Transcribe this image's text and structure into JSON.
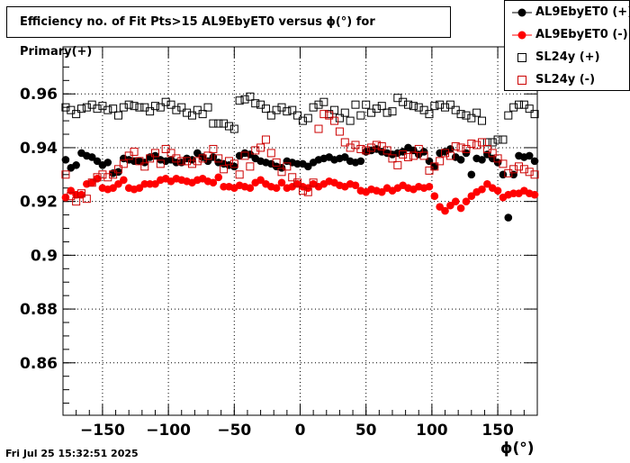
{
  "chart_data": {
    "type": "scatter",
    "title": "Efficiency no. of Fit Pts>15 AL9EbyET0 versus ϕ(°) for Primary(+)",
    "xlabel": "ϕ(°)",
    "ylabel": "",
    "xlim": [
      -180,
      180
    ],
    "ylim": [
      0.8405,
      0.9775
    ],
    "x_ticks": [
      -150,
      -100,
      -50,
      0,
      50,
      100,
      150
    ],
    "x_tick_labels": [
      "−150",
      "−100",
      "−50",
      "0",
      "50",
      "100",
      "150"
    ],
    "y_ticks": [
      0.86,
      0.88,
      0.9,
      0.92,
      0.94,
      0.96
    ],
    "y_tick_labels": [
      "0.86",
      "0.88",
      "0.9",
      "0.92",
      "0.94",
      "0.96"
    ],
    "grid": true,
    "legend_position": "top-right",
    "series": [
      {
        "name": "AL9EbyET0 (+)",
        "marker": "filled-circle",
        "color": "#000000",
        "x": [
          -178,
          -174,
          -170,
          -166,
          -162,
          -158,
          -154,
          -150,
          -146,
          -142,
          -138,
          -134,
          -130,
          -126,
          -122,
          -118,
          -114,
          -110,
          -106,
          -102,
          -98,
          -94,
          -90,
          -86,
          -82,
          -78,
          -74,
          -70,
          -66,
          -62,
          -58,
          -54,
          -50,
          -46,
          -42,
          -38,
          -34,
          -30,
          -26,
          -22,
          -18,
          -14,
          -10,
          -6,
          -2,
          2,
          6,
          10,
          14,
          18,
          22,
          26,
          30,
          34,
          38,
          42,
          46,
          50,
          54,
          58,
          62,
          66,
          70,
          74,
          78,
          82,
          86,
          90,
          94,
          98,
          102,
          106,
          110,
          114,
          118,
          122,
          126,
          130,
          134,
          138,
          142,
          146,
          150,
          154,
          158,
          162,
          166,
          170,
          174,
          178
        ],
        "y": [
          0.9355,
          0.9325,
          0.9335,
          0.938,
          0.937,
          0.9365,
          0.935,
          0.9335,
          0.9345,
          0.9305,
          0.931,
          0.936,
          0.9355,
          0.935,
          0.935,
          0.9345,
          0.9365,
          0.937,
          0.9355,
          0.935,
          0.9355,
          0.9345,
          0.9345,
          0.936,
          0.9355,
          0.938,
          0.9365,
          0.935,
          0.9365,
          0.9345,
          0.934,
          0.9335,
          0.933,
          0.937,
          0.938,
          0.9375,
          0.936,
          0.935,
          0.9345,
          0.934,
          0.933,
          0.9325,
          0.935,
          0.9345,
          0.934,
          0.934,
          0.933,
          0.9345,
          0.9355,
          0.936,
          0.9365,
          0.9355,
          0.936,
          0.9365,
          0.935,
          0.9345,
          0.935,
          0.9385,
          0.939,
          0.9395,
          0.9385,
          0.938,
          0.9375,
          0.938,
          0.9385,
          0.94,
          0.939,
          0.9375,
          0.9385,
          0.935,
          0.933,
          0.938,
          0.9385,
          0.9395,
          0.9365,
          0.9355,
          0.938,
          0.93,
          0.936,
          0.9355,
          0.9375,
          0.936,
          0.9345,
          0.93,
          0.914,
          0.93,
          0.937,
          0.9365,
          0.937,
          0.935
        ]
      },
      {
        "name": "AL9EbyET0 (-)",
        "marker": "filled-circle",
        "color": "#ff0000",
        "x": [
          -178,
          -174,
          -170,
          -166,
          -162,
          -158,
          -154,
          -150,
          -146,
          -142,
          -138,
          -134,
          -130,
          -126,
          -122,
          -118,
          -114,
          -110,
          -106,
          -102,
          -98,
          -94,
          -90,
          -86,
          -82,
          -78,
          -74,
          -70,
          -66,
          -62,
          -58,
          -54,
          -50,
          -46,
          -42,
          -38,
          -34,
          -30,
          -26,
          -22,
          -18,
          -14,
          -10,
          -6,
          -2,
          2,
          6,
          10,
          14,
          18,
          22,
          26,
          30,
          34,
          38,
          42,
          46,
          50,
          54,
          58,
          62,
          66,
          70,
          74,
          78,
          82,
          86,
          90,
          94,
          98,
          102,
          106,
          110,
          114,
          118,
          122,
          126,
          130,
          134,
          138,
          142,
          146,
          150,
          154,
          158,
          162,
          166,
          170,
          174,
          178
        ],
        "y": [
          0.9215,
          0.924,
          0.9225,
          0.9225,
          0.9265,
          0.927,
          0.9285,
          0.925,
          0.9245,
          0.925,
          0.9265,
          0.928,
          0.925,
          0.9245,
          0.925,
          0.9265,
          0.9265,
          0.9265,
          0.928,
          0.9285,
          0.9275,
          0.9285,
          0.928,
          0.9275,
          0.927,
          0.928,
          0.9285,
          0.9275,
          0.927,
          0.929,
          0.9255,
          0.9255,
          0.925,
          0.926,
          0.9255,
          0.925,
          0.927,
          0.928,
          0.9265,
          0.9255,
          0.925,
          0.927,
          0.925,
          0.9255,
          0.9265,
          0.9255,
          0.925,
          0.9265,
          0.9255,
          0.9265,
          0.9275,
          0.927,
          0.926,
          0.9255,
          0.9265,
          0.926,
          0.924,
          0.9235,
          0.9245,
          0.924,
          0.9235,
          0.925,
          0.924,
          0.925,
          0.926,
          0.925,
          0.9245,
          0.9255,
          0.925,
          0.9255,
          0.922,
          0.918,
          0.9165,
          0.9185,
          0.92,
          0.9175,
          0.92,
          0.922,
          0.9235,
          0.9245,
          0.9265,
          0.925,
          0.924,
          0.9215,
          0.9225,
          0.923,
          0.923,
          0.924,
          0.923,
          0.9225
        ]
      },
      {
        "name": "SL24y (+)",
        "marker": "open-square",
        "color": "#000000",
        "x": [
          -178,
          -174,
          -170,
          -166,
          -162,
          -158,
          -154,
          -150,
          -146,
          -142,
          -138,
          -134,
          -130,
          -126,
          -122,
          -118,
          -114,
          -110,
          -106,
          -102,
          -98,
          -94,
          -90,
          -86,
          -82,
          -78,
          -74,
          -70,
          -66,
          -62,
          -58,
          -54,
          -50,
          -46,
          -42,
          -38,
          -34,
          -30,
          -26,
          -22,
          -18,
          -14,
          -10,
          -6,
          -2,
          2,
          6,
          10,
          14,
          18,
          22,
          26,
          30,
          34,
          38,
          42,
          46,
          50,
          54,
          58,
          62,
          66,
          70,
          74,
          78,
          82,
          86,
          90,
          94,
          98,
          102,
          106,
          110,
          114,
          118,
          122,
          126,
          130,
          134,
          138,
          142,
          146,
          150,
          154,
          158,
          162,
          166,
          170,
          174,
          178
        ],
        "y": [
          0.955,
          0.954,
          0.9525,
          0.9545,
          0.955,
          0.956,
          0.9545,
          0.9555,
          0.954,
          0.9545,
          0.952,
          0.955,
          0.956,
          0.9555,
          0.955,
          0.955,
          0.9535,
          0.9555,
          0.955,
          0.957,
          0.956,
          0.954,
          0.955,
          0.953,
          0.952,
          0.954,
          0.9525,
          0.955,
          0.949,
          0.949,
          0.949,
          0.948,
          0.947,
          0.9575,
          0.958,
          0.959,
          0.9565,
          0.956,
          0.9545,
          0.952,
          0.954,
          0.955,
          0.9535,
          0.954,
          0.952,
          0.95,
          0.951,
          0.955,
          0.956,
          0.957,
          0.9525,
          0.954,
          0.951,
          0.953,
          0.95,
          0.956,
          0.952,
          0.956,
          0.953,
          0.9545,
          0.9555,
          0.953,
          0.9535,
          0.9585,
          0.957,
          0.956,
          0.9555,
          0.955,
          0.954,
          0.9525,
          0.9555,
          0.956,
          0.955,
          0.956,
          0.954,
          0.9525,
          0.952,
          0.951,
          0.953,
          0.95,
          0.942,
          0.942,
          0.943,
          0.943,
          0.952,
          0.955,
          0.956,
          0.956,
          0.9545,
          0.9525
        ]
      },
      {
        "name": "SL24y (-)",
        "marker": "open-square",
        "color": "#cc0000",
        "x": [
          -178,
          -174,
          -170,
          -166,
          -162,
          -158,
          -154,
          -150,
          -146,
          -142,
          -138,
          -134,
          -130,
          -126,
          -122,
          -118,
          -114,
          -110,
          -106,
          -102,
          -98,
          -94,
          -90,
          -86,
          -82,
          -78,
          -74,
          -70,
          -66,
          -62,
          -58,
          -54,
          -50,
          -46,
          -42,
          -38,
          -34,
          -30,
          -26,
          -22,
          -18,
          -14,
          -10,
          -6,
          -2,
          2,
          6,
          10,
          14,
          18,
          22,
          26,
          30,
          34,
          38,
          42,
          46,
          50,
          54,
          58,
          62,
          66,
          70,
          74,
          78,
          82,
          86,
          90,
          94,
          98,
          102,
          106,
          110,
          114,
          118,
          122,
          126,
          130,
          134,
          138,
          142,
          146,
          150,
          154,
          158,
          162,
          166,
          170,
          174,
          178
        ],
        "y": [
          0.93,
          0.922,
          0.92,
          0.923,
          0.921,
          0.927,
          0.929,
          0.93,
          0.929,
          0.93,
          0.932,
          0.934,
          0.937,
          0.9385,
          0.935,
          0.933,
          0.936,
          0.938,
          0.934,
          0.9395,
          0.938,
          0.936,
          0.935,
          0.935,
          0.934,
          0.935,
          0.936,
          0.937,
          0.9395,
          0.936,
          0.932,
          0.935,
          0.934,
          0.93,
          0.937,
          0.933,
          0.939,
          0.94,
          0.943,
          0.938,
          0.9345,
          0.931,
          0.933,
          0.929,
          0.927,
          0.924,
          0.9235,
          0.927,
          0.947,
          0.9525,
          0.952,
          0.95,
          0.946,
          0.942,
          0.94,
          0.941,
          0.9395,
          0.939,
          0.94,
          0.941,
          0.9405,
          0.939,
          0.936,
          0.9335,
          0.9375,
          0.9365,
          0.937,
          0.9395,
          0.937,
          0.9315,
          0.933,
          0.935,
          0.938,
          0.937,
          0.9405,
          0.94,
          0.9395,
          0.9415,
          0.941,
          0.942,
          0.9395,
          0.938,
          0.936,
          0.934,
          0.9305,
          0.932,
          0.933,
          0.932,
          0.931,
          0.93
        ]
      }
    ]
  },
  "timestamp": "Fri Jul 25 15:32:51 2025"
}
